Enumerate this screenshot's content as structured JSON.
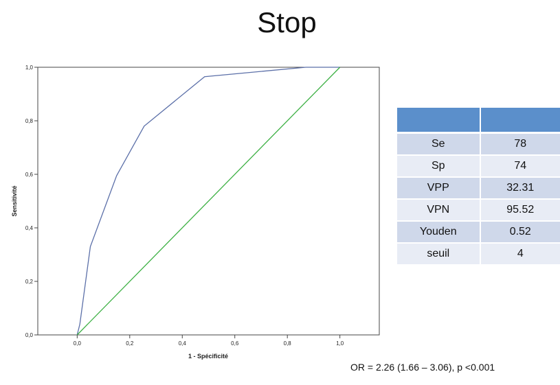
{
  "slide": {
    "title": "Stop",
    "footnote": "OR = 2.26 (1.66 – 3.06), p <0.001"
  },
  "colors": {
    "roc_curve": "#5b6fa8",
    "reference_line": "#3cb043",
    "table_header": "#5b8fcb",
    "table_row_odd": "#cfd8ea",
    "table_row_even": "#e8ecf5"
  },
  "chart_data": {
    "type": "line",
    "title": "",
    "xlabel": "1 - Spécificité",
    "ylabel": "Sensitivité",
    "xlim": [
      -0.15,
      1.15
    ],
    "ylim": [
      0,
      1
    ],
    "x_ticks": [
      {
        "value": 0.0,
        "label": "0,0"
      },
      {
        "value": 0.2,
        "label": "0,2"
      },
      {
        "value": 0.4,
        "label": "0,4"
      },
      {
        "value": 0.6,
        "label": "0,6"
      },
      {
        "value": 0.8,
        "label": "0,8"
      },
      {
        "value": 1.0,
        "label": "1,0"
      }
    ],
    "y_ticks": [
      {
        "value": 0.0,
        "label": "0,0"
      },
      {
        "value": 0.2,
        "label": "0,2"
      },
      {
        "value": 0.4,
        "label": "0,4"
      },
      {
        "value": 0.6,
        "label": "0,6"
      },
      {
        "value": 0.8,
        "label": "0,8"
      },
      {
        "value": 1.0,
        "label": "1,0"
      }
    ],
    "grid": false,
    "series": [
      {
        "color": "#5b6fa8",
        "x": [
          0.0,
          0.01,
          0.05,
          0.15,
          0.255,
          0.485,
          0.87,
          1.0
        ],
        "y": [
          0.0,
          0.04,
          0.33,
          0.595,
          0.78,
          0.965,
          1.0,
          1.0
        ]
      },
      {
        "color": "#3cb043",
        "x": [
          0.0,
          1.0
        ],
        "y": [
          0.0,
          1.0
        ]
      }
    ]
  },
  "stats_table": {
    "header": [
      "",
      ""
    ],
    "rows": [
      {
        "label": "Se",
        "value": "78"
      },
      {
        "label": "Sp",
        "value": "74"
      },
      {
        "label": "VPP",
        "value": "32.31"
      },
      {
        "label": "VPN",
        "value": "95.52"
      },
      {
        "label": "Youden",
        "value": "0.52"
      },
      {
        "label": "seuil",
        "value": "4"
      }
    ]
  }
}
